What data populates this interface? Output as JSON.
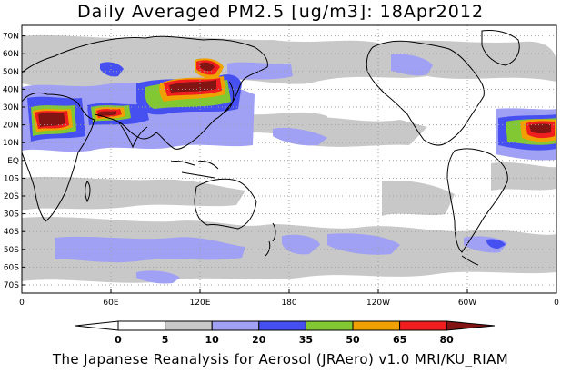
{
  "title": "Daily Averaged PM2.5 [ug/m3]: 18Apr2012",
  "footer": "The Japanese Reanalysis for Aerosol (JRAero) v1.0 MRI/KU_RIAM",
  "lat_labels": [
    "70N",
    "60N",
    "50N",
    "40N",
    "30N",
    "20N",
    "10N",
    "EQ",
    "10S",
    "20S",
    "30S",
    "40S",
    "50S",
    "60S",
    "70S"
  ],
  "lon_labels": [
    "0",
    "60E",
    "120E",
    "180",
    "120W",
    "60W",
    "0"
  ],
  "colorbar": {
    "tick_labels": [
      "0",
      "5",
      "10",
      "20",
      "35",
      "50",
      "65",
      "80"
    ],
    "bins": [
      {
        "range": "0-5",
        "color": "#ffffff"
      },
      {
        "range": "5-10",
        "color": "#c8c8c8"
      },
      {
        "range": "10-20",
        "color": "#a0a0f5"
      },
      {
        "range": "20-35",
        "color": "#4650f0"
      },
      {
        "range": "35-50",
        "color": "#82c832"
      },
      {
        "range": "50-65",
        "color": "#f0a000"
      },
      {
        "range": "65-80",
        "color": "#f01e1e"
      },
      {
        "range": ">80",
        "color": "#821414"
      }
    ],
    "under_color": "#ffffff",
    "over_color": "#821414"
  },
  "colors": {
    "coast": "#000000",
    "grid": "#a0a0a0",
    "frame": "#000000"
  }
}
